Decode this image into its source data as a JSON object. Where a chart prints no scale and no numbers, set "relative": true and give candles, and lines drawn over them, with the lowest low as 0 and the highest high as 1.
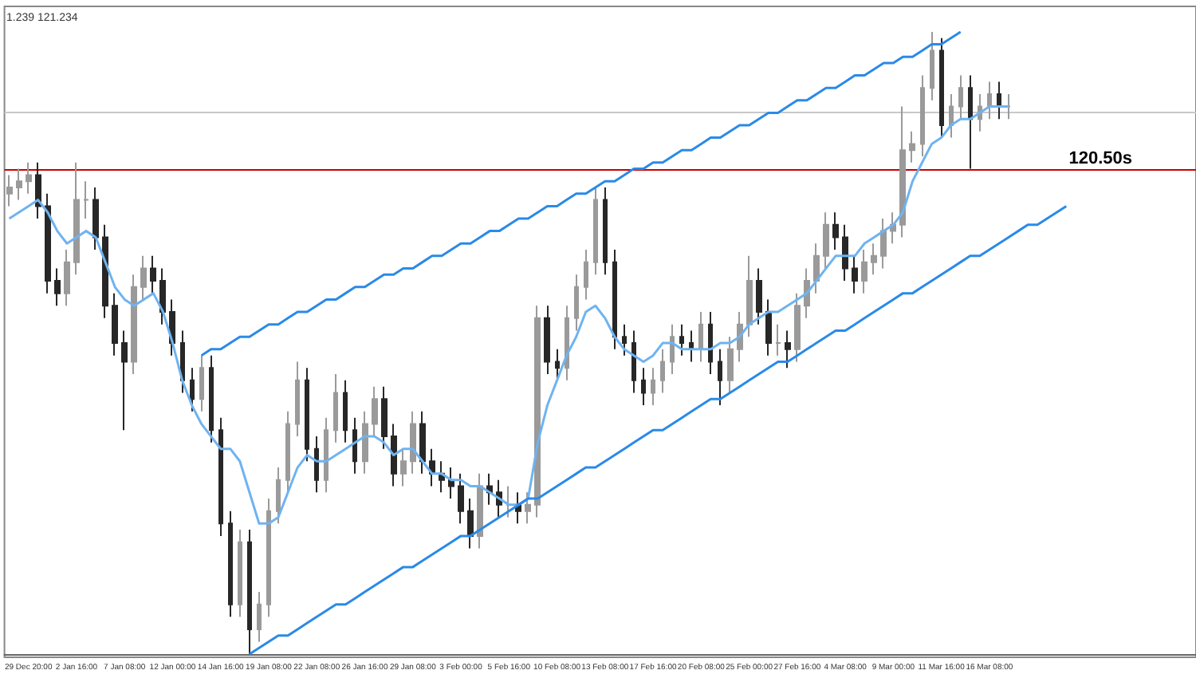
{
  "chart_data": {
    "type": "candlestick",
    "relative": true,
    "grid": false,
    "marker": "none",
    "annotations": [
      "1.239 121.234"
    ],
    "categories": [
      null,
      null,
      "29 Dec 20:00",
      null,
      null,
      null,
      null,
      "2 Jan 16:00",
      null,
      null,
      null,
      null,
      "7 Jan 08:00",
      null,
      null,
      null,
      null,
      "12 Jan 00:00",
      null,
      null,
      null,
      null,
      "14 Jan 16:00",
      null,
      null,
      null,
      null,
      "19 Jan 08:00",
      null,
      null,
      null,
      null,
      "22 Jan 08:00",
      null,
      null,
      null,
      null,
      "26 Jan 16:00",
      null,
      null,
      null,
      null,
      "29 Jan 08:00",
      null,
      null,
      null,
      null,
      "3 Feb 00:00",
      null,
      null,
      null,
      null,
      "5 Feb 16:00",
      null,
      null,
      null,
      null,
      "10 Feb 08:00",
      null,
      null,
      null,
      null,
      "13 Feb 08:00",
      null,
      null,
      null,
      null,
      "17 Feb 16:00",
      null,
      null,
      null,
      null,
      "20 Feb 08:00",
      null,
      null,
      null,
      null,
      "25 Feb 00:00",
      null,
      null,
      null,
      null,
      "27 Feb 16:00",
      null,
      null,
      null,
      null,
      "4 Mar 08:00",
      null,
      null,
      null,
      null,
      "9 Mar 00:00",
      null,
      null,
      null,
      null,
      "11 Mar 16:00",
      null,
      null,
      null,
      null,
      "16 Mar 08:00",
      null,
      null,
      null,
      null,
      null,
      null,
      null,
      null,
      null,
      null,
      null,
      null,
      null,
      null,
      null,
      null,
      null,
      null,
      null,
      null,
      null
    ],
    "ref_lines": [
      {
        "axis": "y",
        "value": 0.78,
        "label": "120.50s",
        "color": "#cc0000"
      },
      {
        "axis": "y",
        "value": 0.87,
        "label": null,
        "color": "#c8c8c8"
      }
    ],
    "series": [
      {
        "colors": [
          "#9a9a9a",
          "#9a9a9a",
          "#9a9a9a",
          "#272727",
          "#272727",
          "#272727",
          "#9a9a9a",
          "#9a9a9a",
          "#9a9a9a",
          "#272727",
          "#272727",
          "#272727",
          "#272727",
          "#9a9a9a",
          "#9a9a9a",
          "#272727",
          "#272727",
          "#272727",
          "#272727",
          "#272727",
          "#9a9a9a",
          "#272727",
          "#272727",
          "#272727",
          "#9a9a9a",
          "#272727",
          "#9a9a9a",
          "#9a9a9a",
          "#9a9a9a",
          "#9a9a9a",
          "#9a9a9a",
          "#272727",
          "#272727",
          "#9a9a9a",
          "#9a9a9a",
          "#272727",
          "#272727",
          "#9a9a9a",
          "#9a9a9a",
          "#272727",
          "#272727",
          "#9a9a9a",
          "#9a9a9a",
          "#272727",
          "#272727",
          "#272727",
          "#272727",
          "#272727",
          "#272727",
          "#9a9a9a",
          "#272727",
          "#272727",
          "#9a9a9a",
          "#272727",
          "#9a9a9a",
          "#9a9a9a",
          "#272727",
          "#272727",
          "#9a9a9a",
          "#9a9a9a",
          "#9a9a9a",
          "#9a9a9a",
          "#272727",
          "#272727",
          "#272727",
          "#272727",
          "#272727",
          "#9a9a9a",
          "#9a9a9a",
          "#9a9a9a",
          "#272727",
          "#272727",
          "#9a9a9a",
          "#272727",
          "#272727",
          "#9a9a9a",
          "#9a9a9a",
          "#9a9a9a",
          "#272727",
          "#272727",
          "#9a9a9a",
          "#272727",
          "#9a9a9a",
          "#9a9a9a",
          "#9a9a9a",
          "#9a9a9a",
          "#272727",
          "#272727",
          "#272727",
          "#9a9a9a",
          "#9a9a9a",
          "#9a9a9a",
          "#9a9a9a",
          "#9a9a9a",
          "#9a9a9a",
          "#9a9a9a",
          "#9a9a9a",
          "#272727",
          "#9a9a9a",
          "#9a9a9a",
          "#272727",
          "#9a9a9a",
          "#9a9a9a",
          "#272727",
          "#9a9a9a",
          null,
          null,
          null,
          null,
          null,
          null,
          null,
          null,
          null,
          null,
          null,
          null,
          null,
          null,
          null,
          null,
          null,
          null,
          null
        ],
        "ohlc": [
          [
            0.74,
            0.77,
            0.72,
            0.75
          ],
          [
            0.75,
            0.78,
            0.73,
            0.76
          ],
          [
            0.76,
            0.79,
            0.74,
            0.77
          ],
          [
            0.77,
            0.79,
            0.7,
            0.72
          ],
          [
            0.72,
            0.74,
            0.58,
            0.6
          ],
          [
            0.6,
            0.62,
            0.56,
            0.58
          ],
          [
            0.58,
            0.65,
            0.56,
            0.63
          ],
          [
            0.63,
            0.79,
            0.61,
            0.73
          ],
          [
            0.73,
            0.76,
            0.7,
            0.73
          ],
          [
            0.73,
            0.75,
            0.65,
            0.67
          ],
          [
            0.67,
            0.69,
            0.54,
            0.56
          ],
          [
            0.56,
            0.58,
            0.48,
            0.5
          ],
          [
            0.5,
            0.52,
            0.36,
            0.47
          ],
          [
            0.47,
            0.61,
            0.45,
            0.59
          ],
          [
            0.59,
            0.64,
            0.57,
            0.62
          ],
          [
            0.62,
            0.64,
            0.58,
            0.6
          ],
          [
            0.6,
            0.62,
            0.53,
            0.55
          ],
          [
            0.55,
            0.57,
            0.48,
            0.5
          ],
          [
            0.5,
            0.52,
            0.42,
            0.44
          ],
          [
            0.44,
            0.46,
            0.39,
            0.41
          ],
          [
            0.41,
            0.48,
            0.39,
            0.46
          ],
          [
            0.46,
            0.48,
            0.34,
            0.36
          ],
          [
            0.36,
            0.38,
            0.19,
            0.21
          ],
          [
            0.21,
            0.23,
            0.06,
            0.08
          ],
          [
            0.08,
            0.2,
            0.06,
            0.18
          ],
          [
            0.18,
            0.2,
            0.0,
            0.04
          ],
          [
            0.04,
            0.1,
            0.02,
            0.08
          ],
          [
            0.08,
            0.25,
            0.06,
            0.23
          ],
          [
            0.23,
            0.3,
            0.21,
            0.28
          ],
          [
            0.28,
            0.39,
            0.26,
            0.37
          ],
          [
            0.37,
            0.47,
            0.35,
            0.44
          ],
          [
            0.44,
            0.46,
            0.31,
            0.33
          ],
          [
            0.33,
            0.35,
            0.26,
            0.28
          ],
          [
            0.28,
            0.38,
            0.26,
            0.36
          ],
          [
            0.36,
            0.45,
            0.34,
            0.42
          ],
          [
            0.42,
            0.44,
            0.34,
            0.36
          ],
          [
            0.36,
            0.38,
            0.29,
            0.31
          ],
          [
            0.31,
            0.39,
            0.29,
            0.37
          ],
          [
            0.37,
            0.43,
            0.35,
            0.41
          ],
          [
            0.41,
            0.43,
            0.33,
            0.35
          ],
          [
            0.35,
            0.37,
            0.27,
            0.29
          ],
          [
            0.29,
            0.33,
            0.27,
            0.31
          ],
          [
            0.31,
            0.39,
            0.29,
            0.37
          ],
          [
            0.37,
            0.39,
            0.29,
            0.31
          ],
          [
            0.31,
            0.33,
            0.27,
            0.29
          ],
          [
            0.29,
            0.31,
            0.26,
            0.28
          ],
          [
            0.28,
            0.3,
            0.25,
            0.27
          ],
          [
            0.27,
            0.29,
            0.21,
            0.23
          ],
          [
            0.23,
            0.25,
            0.17,
            0.19
          ],
          [
            0.19,
            0.29,
            0.17,
            0.27
          ],
          [
            0.27,
            0.29,
            0.24,
            0.26
          ],
          [
            0.26,
            0.28,
            0.22,
            0.24
          ],
          [
            0.24,
            0.27,
            0.22,
            0.24
          ],
          [
            0.24,
            0.26,
            0.21,
            0.23
          ],
          [
            0.23,
            0.26,
            0.21,
            0.24
          ],
          [
            0.24,
            0.56,
            0.22,
            0.54
          ],
          [
            0.54,
            0.56,
            0.45,
            0.47
          ],
          [
            0.47,
            0.49,
            0.44,
            0.46
          ],
          [
            0.46,
            0.56,
            0.44,
            0.54
          ],
          [
            0.54,
            0.61,
            0.52,
            0.59
          ],
          [
            0.59,
            0.65,
            0.57,
            0.63
          ],
          [
            0.63,
            0.75,
            0.61,
            0.73
          ],
          [
            0.73,
            0.75,
            0.61,
            0.63
          ],
          [
            0.63,
            0.65,
            0.49,
            0.51
          ],
          [
            0.51,
            0.53,
            0.48,
            0.5
          ],
          [
            0.5,
            0.52,
            0.42,
            0.44
          ],
          [
            0.44,
            0.46,
            0.4,
            0.42
          ],
          [
            0.42,
            0.46,
            0.4,
            0.44
          ],
          [
            0.44,
            0.49,
            0.42,
            0.47
          ],
          [
            0.47,
            0.53,
            0.45,
            0.51
          ],
          [
            0.51,
            0.53,
            0.48,
            0.5
          ],
          [
            0.5,
            0.52,
            0.47,
            0.49
          ],
          [
            0.49,
            0.55,
            0.47,
            0.53
          ],
          [
            0.53,
            0.55,
            0.45,
            0.47
          ],
          [
            0.47,
            0.49,
            0.4,
            0.44
          ],
          [
            0.44,
            0.51,
            0.42,
            0.49
          ],
          [
            0.49,
            0.55,
            0.47,
            0.53
          ],
          [
            0.53,
            0.64,
            0.51,
            0.6
          ],
          [
            0.6,
            0.62,
            0.53,
            0.55
          ],
          [
            0.55,
            0.57,
            0.48,
            0.5
          ],
          [
            0.5,
            0.53,
            0.48,
            0.5
          ],
          [
            0.5,
            0.52,
            0.46,
            0.49
          ],
          [
            0.49,
            0.58,
            0.47,
            0.56
          ],
          [
            0.56,
            0.62,
            0.54,
            0.6
          ],
          [
            0.6,
            0.66,
            0.58,
            0.64
          ],
          [
            0.64,
            0.71,
            0.62,
            0.69
          ],
          [
            0.69,
            0.71,
            0.65,
            0.67
          ],
          [
            0.67,
            0.69,
            0.6,
            0.62
          ],
          [
            0.62,
            0.64,
            0.58,
            0.6
          ],
          [
            0.6,
            0.65,
            0.58,
            0.63
          ],
          [
            0.63,
            0.66,
            0.61,
            0.64
          ],
          [
            0.64,
            0.7,
            0.62,
            0.68
          ],
          [
            0.68,
            0.71,
            0.66,
            0.69
          ],
          [
            0.69,
            0.88,
            0.67,
            0.81
          ],
          [
            0.81,
            0.84,
            0.79,
            0.82
          ],
          [
            0.82,
            0.93,
            0.8,
            0.91
          ],
          [
            0.91,
            1.0,
            0.89,
            0.97
          ],
          [
            0.97,
            0.99,
            0.83,
            0.85
          ],
          [
            0.85,
            0.9,
            0.83,
            0.88
          ],
          [
            0.88,
            0.93,
            0.86,
            0.91
          ],
          [
            0.91,
            0.93,
            0.78,
            0.86
          ],
          [
            0.86,
            0.9,
            0.84,
            0.88
          ],
          [
            0.88,
            0.92,
            0.86,
            0.9
          ],
          [
            0.9,
            0.92,
            0.86,
            0.88
          ],
          [
            0.88,
            0.9,
            0.86,
            0.88
          ],
          null,
          null,
          null,
          null,
          null,
          null,
          null,
          null,
          null,
          null,
          null,
          null,
          null,
          null,
          null,
          null,
          null,
          null,
          null
        ]
      },
      {
        "type": "line",
        "color": "#6fb3f0",
        "values": [
          0.7,
          0.71,
          0.72,
          0.73,
          0.71,
          0.68,
          0.66,
          0.67,
          0.68,
          0.67,
          0.63,
          0.59,
          0.57,
          0.56,
          0.57,
          0.58,
          0.55,
          0.5,
          0.44,
          0.4,
          0.37,
          0.35,
          0.33,
          0.33,
          0.31,
          0.26,
          0.21,
          0.21,
          0.22,
          0.26,
          0.3,
          0.32,
          0.31,
          0.31,
          0.32,
          0.33,
          0.34,
          0.35,
          0.35,
          0.34,
          0.32,
          0.33,
          0.33,
          0.31,
          0.29,
          0.29,
          0.28,
          0.28,
          0.27,
          0.27,
          0.26,
          0.25,
          0.24,
          0.24,
          0.25,
          0.34,
          0.4,
          0.44,
          0.48,
          0.51,
          0.55,
          0.56,
          0.54,
          0.51,
          0.49,
          0.48,
          0.47,
          0.48,
          0.5,
          0.5,
          0.49,
          0.49,
          0.49,
          0.49,
          0.5,
          0.5,
          0.51,
          0.53,
          0.54,
          0.55,
          0.55,
          0.56,
          0.57,
          0.58,
          0.6,
          0.62,
          0.64,
          0.64,
          0.64,
          0.66,
          0.67,
          0.68,
          0.69,
          0.71,
          0.76,
          0.79,
          0.82,
          0.83,
          0.85,
          0.86,
          0.86,
          0.87,
          0.88,
          0.88,
          0.88,
          null,
          null,
          null,
          null,
          null,
          null,
          null,
          null,
          null,
          null,
          null,
          null,
          null,
          null,
          null,
          null,
          null,
          null,
          null
        ]
      },
      {
        "type": "line",
        "color": "#2a8ae8",
        "values": [
          null,
          null,
          null,
          null,
          null,
          null,
          null,
          null,
          null,
          null,
          null,
          null,
          null,
          null,
          null,
          null,
          null,
          null,
          null,
          null,
          0.48,
          0.49,
          0.49,
          0.5,
          0.51,
          0.51,
          0.52,
          0.53,
          0.53,
          0.54,
          0.55,
          0.55,
          0.56,
          0.57,
          0.57,
          0.58,
          0.59,
          0.59,
          0.6,
          0.61,
          0.61,
          0.62,
          0.62,
          0.63,
          0.64,
          0.64,
          0.65,
          0.66,
          0.66,
          0.67,
          0.68,
          0.68,
          0.69,
          0.7,
          0.7,
          0.71,
          0.72,
          0.72,
          0.73,
          0.74,
          0.74,
          0.75,
          0.76,
          0.76,
          0.77,
          0.78,
          0.78,
          0.79,
          0.79,
          0.8,
          0.81,
          0.81,
          0.82,
          0.83,
          0.83,
          0.84,
          0.85,
          0.85,
          0.86,
          0.87,
          0.87,
          0.88,
          0.89,
          0.89,
          0.9,
          0.91,
          0.91,
          0.92,
          0.93,
          0.93,
          0.94,
          0.95,
          0.95,
          0.96,
          0.96,
          0.97,
          0.98,
          0.98,
          0.99,
          1.0,
          null,
          null,
          null,
          null,
          null,
          null,
          null,
          null,
          null,
          null,
          null,
          null,
          null,
          null,
          null,
          null,
          null,
          null,
          null,
          null,
          null,
          null,
          null,
          null
        ]
      },
      {
        "type": "line",
        "color": "#2a8ae8",
        "values": [
          null,
          null,
          null,
          null,
          null,
          null,
          null,
          null,
          null,
          null,
          null,
          null,
          null,
          null,
          null,
          null,
          null,
          null,
          null,
          null,
          null,
          null,
          null,
          null,
          null,
          0.0,
          0.01,
          0.02,
          0.03,
          0.03,
          0.04,
          0.05,
          0.06,
          0.07,
          0.08,
          0.08,
          0.09,
          0.1,
          0.11,
          0.12,
          0.13,
          0.14,
          0.14,
          0.15,
          0.16,
          0.17,
          0.18,
          0.19,
          0.19,
          0.2,
          0.21,
          0.22,
          0.23,
          0.24,
          0.25,
          0.25,
          0.26,
          0.27,
          0.28,
          0.29,
          0.3,
          0.3,
          0.31,
          0.32,
          0.33,
          0.34,
          0.35,
          0.36,
          0.36,
          0.37,
          0.38,
          0.39,
          0.4,
          0.41,
          0.41,
          0.42,
          0.43,
          0.44,
          0.45,
          0.46,
          0.47,
          0.47,
          0.48,
          0.49,
          0.5,
          0.51,
          0.52,
          0.52,
          0.53,
          0.54,
          0.55,
          0.56,
          0.57,
          0.58,
          0.58,
          0.59,
          0.6,
          0.61,
          0.62,
          0.63,
          0.64,
          0.64,
          0.65,
          0.66,
          0.67,
          0.68,
          0.69,
          0.69,
          0.7,
          0.71,
          0.72,
          null,
          null,
          null,
          null,
          null,
          null,
          null,
          null,
          null,
          null,
          null,
          null,
          null
        ]
      }
    ]
  }
}
